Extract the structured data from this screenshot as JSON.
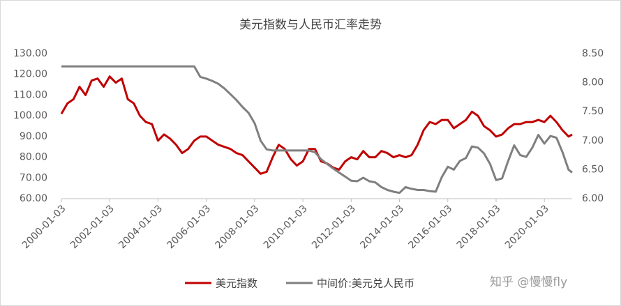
{
  "chart_data": {
    "type": "line",
    "title": "美元指数与人民币汇率走势",
    "watermark": "知乎 @慢慢fly",
    "x": [
      2000,
      2000.25,
      2000.5,
      2000.75,
      2001,
      2001.25,
      2001.5,
      2001.75,
      2002,
      2002.25,
      2002.5,
      2002.75,
      2003,
      2003.25,
      2003.5,
      2003.75,
      2004,
      2004.25,
      2004.5,
      2004.75,
      2005,
      2005.25,
      2005.5,
      2005.75,
      2006,
      2006.25,
      2006.5,
      2006.75,
      2007,
      2007.25,
      2007.5,
      2007.75,
      2008,
      2008.25,
      2008.5,
      2008.75,
      2009,
      2009.25,
      2009.5,
      2009.75,
      2010,
      2010.25,
      2010.5,
      2010.75,
      2011,
      2011.25,
      2011.5,
      2011.75,
      2012,
      2012.25,
      2012.5,
      2012.75,
      2013,
      2013.25,
      2013.5,
      2013.75,
      2014,
      2014.25,
      2014.5,
      2014.75,
      2015,
      2015.25,
      2015.5,
      2015.75,
      2016,
      2016.25,
      2016.5,
      2016.75,
      2017,
      2017.25,
      2017.5,
      2017.75,
      2018,
      2018.25,
      2018.5,
      2018.75,
      2019,
      2019.25,
      2019.5,
      2019.75,
      2020,
      2020.25,
      2020.5,
      2020.75,
      2021,
      2021.15
    ],
    "series": [
      {
        "name": "美元指数",
        "color": "#c00000",
        "axis": "y",
        "values": [
          101,
          106,
          108,
          114,
          110,
          117,
          118,
          114,
          119,
          116,
          118,
          108,
          106,
          100,
          97,
          96,
          88,
          91,
          89,
          86,
          82,
          84,
          88,
          90,
          90,
          88,
          86,
          85,
          84,
          82,
          81,
          78,
          75,
          72,
          73,
          80,
          86,
          84,
          79,
          76,
          78,
          84,
          84,
          78,
          77,
          75,
          74,
          78,
          80,
          79,
          83,
          80,
          80,
          83,
          82,
          80,
          81,
          80,
          81,
          86,
          93,
          97,
          96,
          98,
          98,
          94,
          96,
          98,
          102,
          100,
          95,
          93,
          90,
          91,
          94,
          96,
          96,
          97,
          97,
          98,
          97,
          100,
          97,
          93,
          90,
          91
        ]
      },
      {
        "name": "中间价:美元兑人民币",
        "color": "#7f7f7f",
        "axis": "y2",
        "values": [
          8.28,
          8.28,
          8.28,
          8.28,
          8.28,
          8.28,
          8.28,
          8.28,
          8.28,
          8.28,
          8.28,
          8.28,
          8.28,
          8.28,
          8.28,
          8.28,
          8.28,
          8.28,
          8.28,
          8.28,
          8.28,
          8.28,
          8.28,
          8.1,
          8.07,
          8.03,
          7.98,
          7.9,
          7.8,
          7.7,
          7.58,
          7.48,
          7.3,
          7.0,
          6.85,
          6.83,
          6.83,
          6.83,
          6.83,
          6.83,
          6.83,
          6.83,
          6.8,
          6.68,
          6.6,
          6.52,
          6.45,
          6.38,
          6.31,
          6.3,
          6.36,
          6.3,
          6.28,
          6.2,
          6.15,
          6.12,
          6.1,
          6.2,
          6.17,
          6.15,
          6.15,
          6.13,
          6.12,
          6.37,
          6.55,
          6.5,
          6.65,
          6.7,
          6.9,
          6.88,
          6.78,
          6.6,
          6.32,
          6.35,
          6.65,
          6.92,
          6.75,
          6.72,
          6.88,
          7.1,
          6.95,
          7.08,
          7.05,
          6.8,
          6.5,
          6.45
        ]
      }
    ],
    "xlim": [
      2000,
      2021.15
    ],
    "xticks": [
      {
        "value": 2000,
        "label": "2000-01-03"
      },
      {
        "value": 2002,
        "label": "2002-01-03"
      },
      {
        "value": 2004,
        "label": "2004-01-03"
      },
      {
        "value": 2006,
        "label": "2006-01-03"
      },
      {
        "value": 2008,
        "label": "2008-01-03"
      },
      {
        "value": 2010,
        "label": "2010-01-03"
      },
      {
        "value": 2012,
        "label": "2012-01-03"
      },
      {
        "value": 2014,
        "label": "2014-01-03"
      },
      {
        "value": 2016,
        "label": "2016-01-03"
      },
      {
        "value": 2018,
        "label": "2018-01-03"
      },
      {
        "value": 2020,
        "label": "2020-01-03"
      }
    ],
    "ylim": [
      60,
      130
    ],
    "yticks": [
      {
        "value": 60,
        "label": "60.00"
      },
      {
        "value": 70,
        "label": "70.00"
      },
      {
        "value": 80,
        "label": "80.00"
      },
      {
        "value": 90,
        "label": "90.00"
      },
      {
        "value": 100,
        "label": "100.00"
      },
      {
        "value": 110,
        "label": "110.00"
      },
      {
        "value": 120,
        "label": "120.00"
      },
      {
        "value": 130,
        "label": "130.00"
      }
    ],
    "y2lim": [
      6,
      8.5
    ],
    "y2ticks": [
      {
        "value": 6,
        "label": "6.00"
      },
      {
        "value": 6.5,
        "label": "6.50"
      },
      {
        "value": 7,
        "label": "7.00"
      },
      {
        "value": 7.5,
        "label": "7.50"
      },
      {
        "value": 8,
        "label": "8.00"
      },
      {
        "value": 8.5,
        "label": "8.50"
      }
    ],
    "legend": "bottom"
  }
}
